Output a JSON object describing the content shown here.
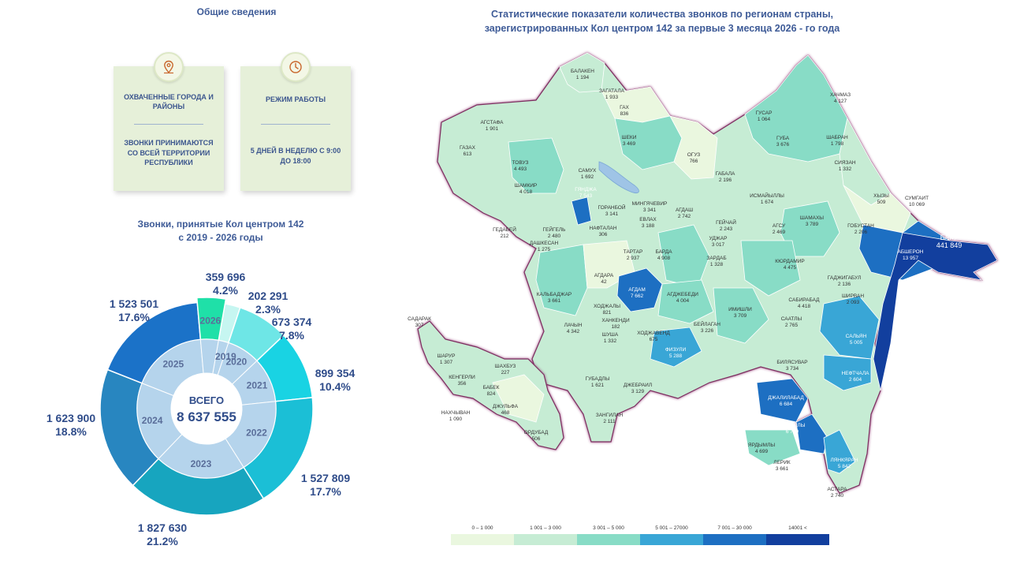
{
  "general": {
    "title": "Общие сведения"
  },
  "cards": [
    {
      "title": "ОХВАЧЕННЫЕ ГОРОДА И РАЙОНЫ",
      "body": "ЗВОНКИ ПРИНИМАЮТСЯ СО ВСЕЙ ТЕРРИТОРИИ РЕСПУБЛИКИ",
      "icon": "map-pin-icon"
    },
    {
      "title": "РЕЖИМ РАБОТЫ",
      "body": "5 ДНЕЙ В НЕДЕЛЮ С 9:00 ДО 18:00",
      "icon": "clock-icon"
    }
  ],
  "calls": {
    "title_line1": "Звонки, принятые Кол центром 142",
    "title_line2": "с 2019 - 2026 годы"
  },
  "chart_data": {
    "type": "pie",
    "title": "Звонки, принятые Кол центром 142 с 2019 - 2026 годы",
    "center_label": "ВСЕГО",
    "total": "8 637 555",
    "categories": [
      "2019",
      "2020",
      "2021",
      "2022",
      "2023",
      "2024",
      "2025",
      "2026"
    ],
    "values": [
      202291,
      673374,
      899354,
      1527809,
      1827630,
      1623900,
      1523501,
      359696
    ],
    "value_labels": [
      "202 291",
      "673 374",
      "899 354",
      "1 527 809",
      "1 827 630",
      "1 623 900",
      "1 523 501",
      "359 696"
    ],
    "percent_labels": [
      "2.3%",
      "7.8%",
      "10.4%",
      "17.7%",
      "21.2%",
      "18.8%",
      "17.6%",
      "4.2%"
    ],
    "colors": [
      "#c6f6f1",
      "#6ee6e6",
      "#19d3e3",
      "#1bbfd6",
      "#17a5bf",
      "#2886c0",
      "#1b72c8",
      "#1fe0a8"
    ]
  },
  "map": {
    "title": "Статистические показатели количества звонков по регионам страны, зарегистрированных Кол центром 142 за первые 3 месяца 2026 - го года",
    "regions": [
      {
        "name": "БАЛАКЕН",
        "value": "1 194"
      },
      {
        "name": "ЗАГАТАЛА",
        "value": "1 933"
      },
      {
        "name": "ГАХ",
        "value": "836"
      },
      {
        "name": "АГСТАФА",
        "value": "1 901"
      },
      {
        "name": "ГАЗАХ",
        "value": "613"
      },
      {
        "name": "ТОВУЗ",
        "value": "4 493"
      },
      {
        "name": "ШАМКИР",
        "value": "4 018"
      },
      {
        "name": "ШЕКИ",
        "value": "3 469"
      },
      {
        "name": "ОГУЗ",
        "value": "766"
      },
      {
        "name": "ГАБАЛА",
        "value": "2 196"
      },
      {
        "name": "ГУСАР",
        "value": "1 064"
      },
      {
        "name": "ХАЧМАЗ",
        "value": "4 127"
      },
      {
        "name": "ГУБА",
        "value": "3 676"
      },
      {
        "name": "ШАБРАН",
        "value": "1 798"
      },
      {
        "name": "СИЯЗАН",
        "value": "1 332"
      },
      {
        "name": "ХЫЗЫ",
        "value": "509"
      },
      {
        "name": "СУМГАИТ",
        "value": "10 069"
      },
      {
        "name": "САМУХ",
        "value": "1 692"
      },
      {
        "name": "ГЯНДЖА",
        "value": "7 543"
      },
      {
        "name": "ГОРАНБОЙ",
        "value": "3 141"
      },
      {
        "name": "МИНГЯЧЕВИР",
        "value": "3 341"
      },
      {
        "name": "ЕВЛАХ",
        "value": "3 188"
      },
      {
        "name": "АГДАШ",
        "value": "2 742"
      },
      {
        "name": "ИСМАЙЫЛЛЫ",
        "value": "1 674"
      },
      {
        "name": "ГЕДАБЕЙ",
        "value": "212"
      },
      {
        "name": "ГЕЙГЕЛЬ",
        "value": "2 480"
      },
      {
        "name": "НАФТАЛАН",
        "value": "306"
      },
      {
        "name": "ГЕЙЧАЙ",
        "value": "2 243"
      },
      {
        "name": "АГСУ",
        "value": "2 469"
      },
      {
        "name": "ШАМАХЫ",
        "value": "3 789"
      },
      {
        "name": "ГОБУСТАН",
        "value": "2 206"
      },
      {
        "name": "БАКУ",
        "value": "441 849"
      },
      {
        "name": "АБШЕРОН",
        "value": "13 957"
      },
      {
        "name": "ДАШКЕСАН",
        "value": "1 275"
      },
      {
        "name": "ТАРТАР",
        "value": "2 937"
      },
      {
        "name": "БАРДА",
        "value": "4 908"
      },
      {
        "name": "УДЖАР",
        "value": "3 017"
      },
      {
        "name": "ЗАРДАБ",
        "value": "1 328"
      },
      {
        "name": "КЮРДАМИР",
        "value": "4 475"
      },
      {
        "name": "ГАДЖИГАБУЛ",
        "value": "2 136"
      },
      {
        "name": "АГДАРА",
        "value": "42"
      },
      {
        "name": "КАЛЬБАДЖАР",
        "value": "3 661"
      },
      {
        "name": "АГДАМ",
        "value": "7 662"
      },
      {
        "name": "АГДЖЕБЕДИ",
        "value": "4 004"
      },
      {
        "name": "САБИРАБАД",
        "value": "4 418"
      },
      {
        "name": "ШИРВАН",
        "value": "2 093"
      },
      {
        "name": "ИМИШЛИ",
        "value": "3 709"
      },
      {
        "name": "СААТЛЫ",
        "value": "2 765"
      },
      {
        "name": "ХОДЖАЛЫ",
        "value": "821"
      },
      {
        "name": "ХАНКЕНДИ",
        "value": "182"
      },
      {
        "name": "ЛАЧЫН",
        "value": "4 342"
      },
      {
        "name": "ШУША",
        "value": "1 332"
      },
      {
        "name": "ХОДЖАВЕНД",
        "value": "675"
      },
      {
        "name": "БЕЙЛАГАН",
        "value": "3 226"
      },
      {
        "name": "САЛЬЯН",
        "value": "5 005"
      },
      {
        "name": "ФИЗУЛИ",
        "value": "5 288"
      },
      {
        "name": "БИЛЯСУВАР",
        "value": "3 734"
      },
      {
        "name": "НЕФТЧАЛА",
        "value": "2 604"
      },
      {
        "name": "ГУБАДЛЫ",
        "value": "1 621"
      },
      {
        "name": "ДЖЕБРАИЛ",
        "value": "3 129"
      },
      {
        "name": "ЗАНГИЛАН",
        "value": "2 111"
      },
      {
        "name": "ДЖАЛИЛАБАД",
        "value": "6 684"
      },
      {
        "name": "МАСАЛЛЫ",
        "value": "6 769"
      },
      {
        "name": "ЯРДЫМЛЫ",
        "value": "4 699"
      },
      {
        "name": "ЛЕРИК",
        "value": "3 661"
      },
      {
        "name": "ЛЯНКЯРАН",
        "value": "5 842"
      },
      {
        "name": "АСТАРА",
        "value": "2 740"
      },
      {
        "name": "САДАРАК",
        "value": "307"
      },
      {
        "name": "ШАРУР",
        "value": "1 307"
      },
      {
        "name": "КЕНГЕРЛИ",
        "value": "356"
      },
      {
        "name": "ШАХБУЗ",
        "value": "227"
      },
      {
        "name": "БАБЕК",
        "value": "824"
      },
      {
        "name": "НАХЧЫВАН",
        "value": "1 090"
      },
      {
        "name": "ДЖУЛЬФА",
        "value": "468"
      },
      {
        "name": "ОРДУБАД",
        "value": "506"
      }
    ]
  },
  "legend": {
    "items": [
      {
        "label": "0 – 1 000",
        "color": "#eaf7df"
      },
      {
        "label": "1 001 – 3 000",
        "color": "#c6ecd4"
      },
      {
        "label": "3 001 – 5 000",
        "color": "#88dcc6"
      },
      {
        "label": "5 001 – 27000",
        "color": "#39a6d6"
      },
      {
        "label": "7 001 – 30 000",
        "color": "#1d6fc2"
      },
      {
        "label": "14001 <",
        "color": "#123f9e"
      }
    ]
  }
}
